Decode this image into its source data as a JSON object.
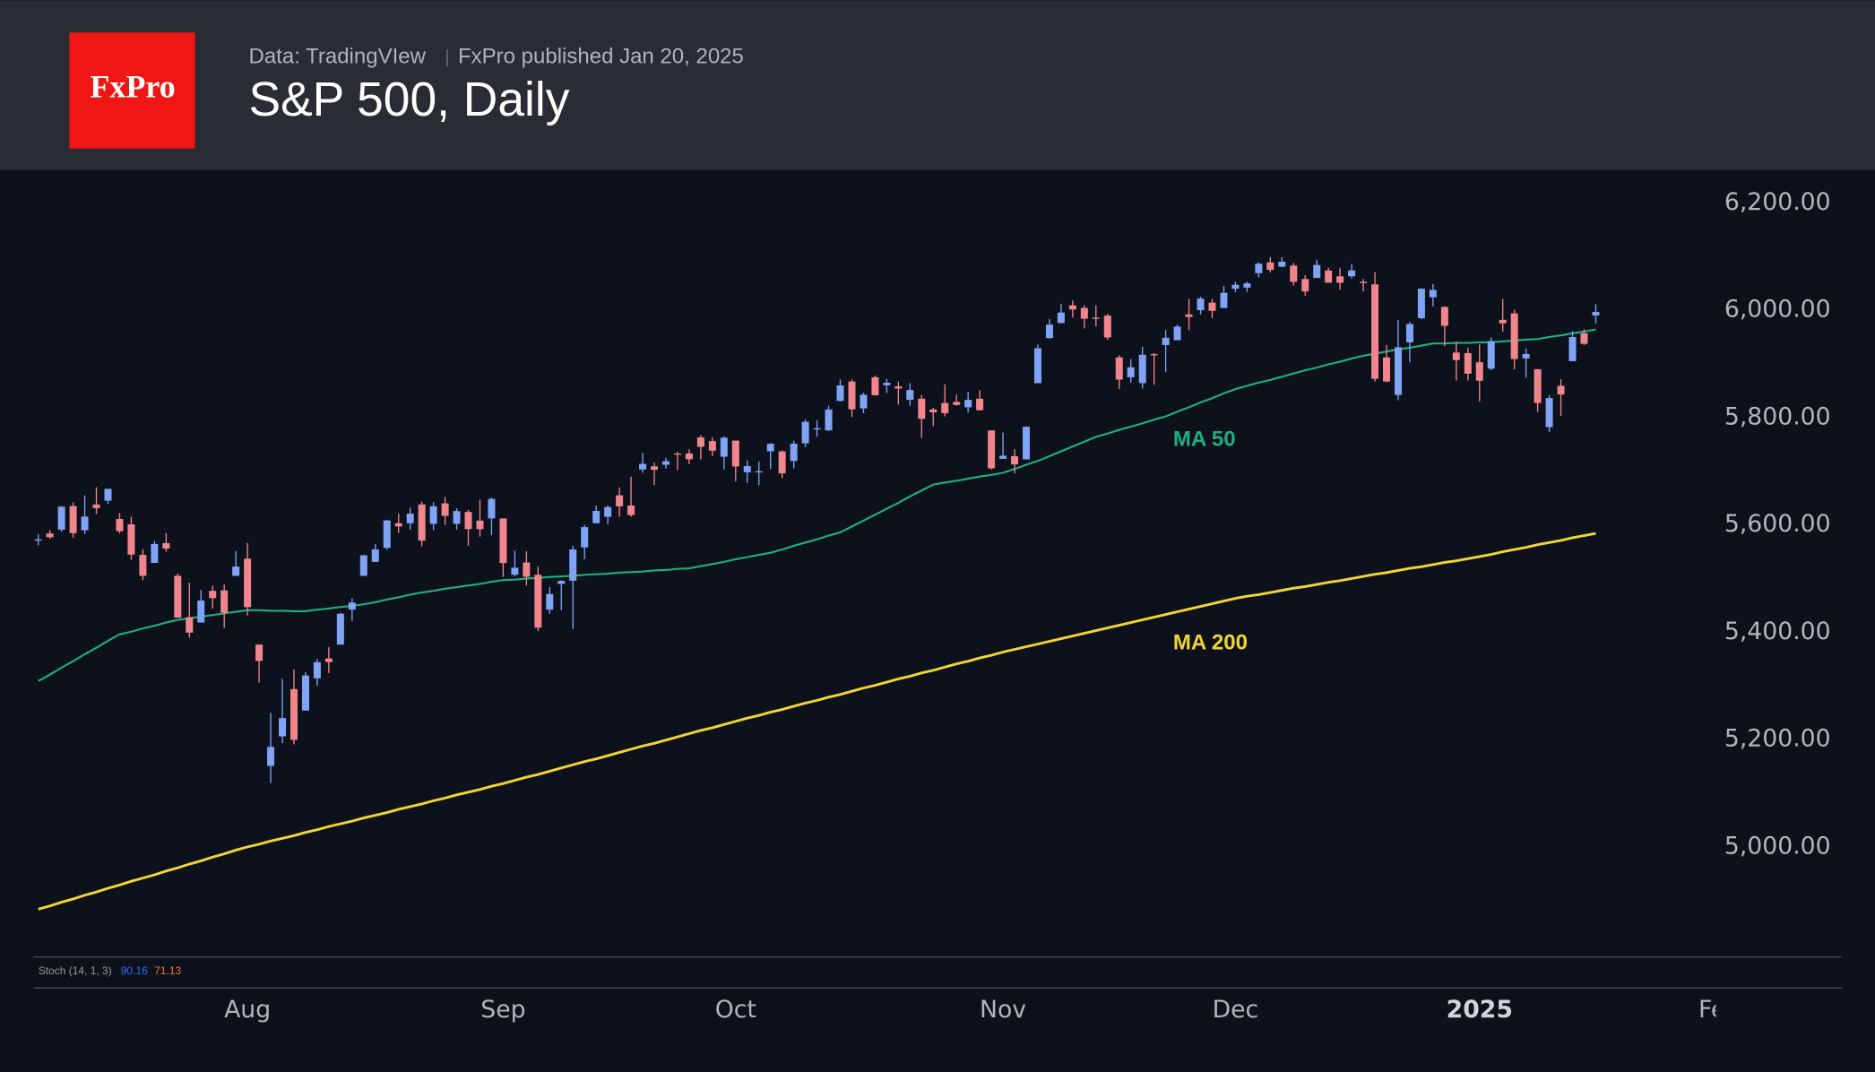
{
  "header": {
    "logo": "FxPro",
    "source": "Data: TradingVIew",
    "published": "FxPro published Jan 20, 2025"
  },
  "chart_data": {
    "type": "candlestick",
    "title": "S&P 500, Daily",
    "categories": [
      null,
      null,
      null,
      null,
      null,
      null,
      null,
      null,
      null,
      null,
      null,
      null,
      null,
      null,
      null,
      null,
      null,
      null,
      "Aug",
      null,
      null,
      null,
      null,
      null,
      null,
      null,
      null,
      null,
      null,
      null,
      null,
      null,
      null,
      null,
      null,
      null,
      null,
      null,
      null,
      null,
      "Sep",
      null,
      null,
      null,
      null,
      null,
      null,
      null,
      null,
      null,
      null,
      null,
      null,
      null,
      null,
      null,
      null,
      null,
      null,
      null,
      "Oct",
      null,
      null,
      null,
      null,
      null,
      null,
      null,
      null,
      null,
      null,
      null,
      null,
      null,
      null,
      null,
      null,
      null,
      null,
      null,
      null,
      null,
      null,
      "Nov",
      null,
      null,
      null,
      null,
      null,
      null,
      null,
      null,
      null,
      null,
      null,
      null,
      null,
      null,
      null,
      null,
      null,
      null,
      null,
      "Dec",
      null,
      null,
      null,
      null,
      null,
      null,
      null,
      null,
      null,
      null,
      null,
      null,
      null,
      null,
      null,
      null,
      null,
      null,
      null,
      null,
      "2025",
      null,
      null,
      null,
      null,
      null,
      null,
      null,
      null,
      null,
      null,
      null,
      null,
      null,
      null,
      null,
      null,
      null,
      null,
      null,
      "Fe"
    ],
    "open": [
      5572,
      5584,
      5591,
      5635,
      5590,
      5638,
      5645,
      5611,
      5601,
      5544,
      5529,
      5566,
      5505,
      5428,
      5418,
      5477,
      5478,
      5505,
      5537,
      5377,
      5151,
      5206,
      5294,
      5254,
      5314,
      5351,
      5377,
      5442,
      5505,
      5531,
      5557,
      5603,
      5603,
      5638,
      5602,
      5640,
      5602,
      5624,
      5608,
      5612,
      5612,
      5507,
      5530,
      5507,
      5442,
      5490,
      5496,
      5558,
      5603,
      5615,
      5655,
      5636,
      5703,
      5709,
      5712,
      5733,
      5733,
      5763,
      5756,
      5727,
      5757,
      5698,
      5698,
      5737,
      5737,
      5719,
      5752,
      5778,
      5776,
      5831,
      5867,
      5817,
      5875,
      5860,
      5858,
      5833,
      5835,
      5815,
      5827,
      5829,
      5819,
      5835,
      5776,
      5723,
      5728,
      5722,
      5864,
      5948,
      5976,
      6009,
      6004,
      5986,
      5990,
      5912,
      5875,
      5864,
      5918,
      5935,
      5944,
      5992,
      6000,
      6014,
      6004,
      6040,
      6042,
      6069,
      6089,
      6081,
      6083,
      6058,
      6060,
      6074,
      6063,
      6063,
      6053,
      6048,
      5912,
      5842,
      5940,
      5985,
      6024,
      6006,
      5921,
      5920,
      5903,
      5891,
      5982,
      5994,
      5910,
      5890,
      5782,
      5859,
      5905,
      5957,
      5990,
      null,
      null,
      null,
      null,
      null,
      null,
      null,
      null,
      null,
      null
    ],
    "high": [
      5583,
      5590,
      5635,
      5642,
      5655,
      5670,
      5667,
      5622,
      5615,
      5555,
      5570,
      5585,
      5509,
      5492,
      5479,
      5487,
      5489,
      5551,
      5566,
      5377,
      5250,
      5313,
      5331,
      5326,
      5350,
      5372,
      5436,
      5463,
      5544,
      5564,
      5609,
      5621,
      5632,
      5643,
      5642,
      5652,
      5631,
      5628,
      5647,
      5651,
      5612,
      5552,
      5551,
      5522,
      5484,
      5497,
      5561,
      5600,
      5636,
      5636,
      5670,
      5690,
      5734,
      5716,
      5725,
      5736,
      5741,
      5767,
      5763,
      5765,
      5757,
      5720,
      5718,
      5752,
      5739,
      5757,
      5796,
      5795,
      5822,
      5871,
      5871,
      5846,
      5878,
      5872,
      5867,
      5864,
      5842,
      5818,
      5862,
      5843,
      5848,
      5851,
      5776,
      5772,
      5741,
      5784,
      5936,
      5983,
      6012,
      6018,
      6009,
      6009,
      5993,
      5916,
      5909,
      5932,
      5920,
      5963,
      5973,
      6021,
      6025,
      6021,
      6045,
      6053,
      6053,
      6089,
      6099,
      6099,
      6088,
      6065,
      6094,
      6079,
      6079,
      6086,
      6058,
      6071,
      5935,
      5982,
      5978,
      6041,
      6049,
      6007,
      5941,
      5930,
      5936,
      5949,
      6021,
      6001,
      5928,
      5890,
      5842,
      5871,
      5961,
      5964,
      6011,
      null,
      null,
      null,
      null,
      null,
      null,
      null,
      null,
      null,
      null
    ],
    "low": [
      5562,
      5574,
      5587,
      5576,
      5583,
      5620,
      5639,
      5584,
      5535,
      5497,
      5529,
      5550,
      5427,
      5390,
      5418,
      5444,
      5408,
      5505,
      5431,
      5306,
      5119,
      5193,
      5191,
      5254,
      5300,
      5324,
      5377,
      5421,
      5505,
      5531,
      5554,
      5585,
      5591,
      5560,
      5590,
      5600,
      5591,
      5561,
      5578,
      5581,
      5503,
      5504,
      5487,
      5402,
      5434,
      5441,
      5406,
      5536,
      5603,
      5601,
      5615,
      5615,
      5697,
      5674,
      5705,
      5702,
      5713,
      5722,
      5728,
      5703,
      5681,
      5678,
      5674,
      5704,
      5687,
      5705,
      5745,
      5764,
      5775,
      5830,
      5801,
      5808,
      5841,
      5846,
      5824,
      5822,
      5762,
      5784,
      5802,
      5822,
      5809,
      5813,
      5703,
      5723,
      5696,
      5722,
      5864,
      5947,
      5976,
      5986,
      5966,
      5970,
      5945,
      5853,
      5865,
      5854,
      5861,
      5885,
      5944,
      5963,
      5992,
      5985,
      6004,
      6034,
      6034,
      6061,
      6070,
      6080,
      6046,
      6027,
      6060,
      6051,
      6038,
      6059,
      6035,
      5867,
      5866,
      5832,
      5903,
      5983,
      6007,
      5933,
      5869,
      5869,
      5830,
      5888,
      5960,
      5890,
      5874,
      5810,
      5773,
      5803,
      5905,
      5935,
      5975,
      null,
      null,
      null,
      null,
      null,
      null,
      null,
      null,
      null,
      null
    ],
    "close": [
      5572.85,
      5576.98,
      5633.91,
      5584.54,
      5615.35,
      5631.22,
      5667.2,
      5588.27,
      5544.59,
      5505,
      5564.41,
      5555.74,
      5427.13,
      5399.22,
      5459.1,
      5463.54,
      5436.44,
      5522.3,
      5446.68,
      5346.56,
      5186.33,
      5240.03,
      5199.5,
      5319.31,
      5344.16,
      5344.39,
      5434.43,
      5455.21,
      5543.22,
      5554.25,
      5608.25,
      5597.12,
      5620.85,
      5570.64,
      5634.61,
      5616.84,
      5625.8,
      5592.18,
      5591.96,
      5648.4,
      5528.93,
      5520.07,
      5503.41,
      5408.42,
      5471.05,
      5495.52,
      5554.13,
      5595.76,
      5626.02,
      5633.09,
      5634.58,
      5618.26,
      5713.64,
      5702.55,
      5718.57,
      5732.93,
      5722.26,
      5745.37,
      5738.17,
      5762.48,
      5708.75,
      5709.54,
      5699.94,
      5751.07,
      5695.94,
      5751.13,
      5792.04,
      5780.05,
      5815.03,
      5859.85,
      5815.26,
      5842.47,
      5841.47,
      5864.67,
      5853.98,
      5851.2,
      5797.42,
      5809.86,
      5808.12,
      5823.52,
      5832.92,
      5813.67,
      5705.45,
      5728.8,
      5712.69,
      5782.76,
      5929.04,
      5973.1,
      5995.54,
      6001.35,
      5983.99,
      5985.38,
      5949.17,
      5870.62,
      5893.62,
      5916.98,
      5917.11,
      5948.71,
      5969.34,
      5987.37,
      6021.63,
      5998.74,
      6032.38,
      6047.15,
      6049.88,
      6086.49,
      6075.11,
      6090.27,
      6052.85,
      6034.91,
      6084.19,
      6051.25,
      6051.09,
      6074.08,
      6050.61,
      5872.16,
      5867.08,
      5930.85,
      5974.07,
      6040.04,
      6037.59,
      5970.84,
      5906.94,
      5881.63,
      5868.55,
      5942.47,
      5975.38,
      5909.03,
      5918.25,
      5827.04,
      5836.22,
      5842.91,
      5949.91,
      5937.34,
      5996.66,
      null,
      null,
      null,
      null,
      null,
      null,
      null,
      null,
      null,
      null
    ],
    "up_color": "#7fa3f5",
    "down_color": "#f2858c",
    "series": [
      {
        "name": "MA 50",
        "color": "#1fae80",
        "values": [
          5309,
          5321,
          5334,
          5346,
          5359,
          5371,
          5384,
          5396,
          5401,
          5407,
          5412,
          5418,
          5423,
          5426,
          5429,
          5432,
          5435,
          5438,
          5441,
          5441,
          5440,
          5440,
          5439,
          5439,
          5442,
          5444,
          5447,
          5449,
          5452,
          5456,
          5461,
          5465,
          5470,
          5474,
          5477,
          5481,
          5484,
          5487,
          5490,
          5494,
          5497,
          5498,
          5500,
          5501,
          5503,
          5504,
          5505,
          5507,
          5508,
          5509,
          5511,
          5512,
          5513,
          5515,
          5516,
          5518,
          5519,
          5523,
          5527,
          5531,
          5536,
          5540,
          5544,
          5548,
          5554,
          5561,
          5567,
          5573,
          5580,
          5586,
          5597,
          5608,
          5619,
          5630,
          5641,
          5653,
          5664,
          5675,
          5679,
          5682,
          5686,
          5690,
          5693,
          5697,
          5704,
          5712,
          5719,
          5728,
          5737,
          5746,
          5755,
          5764,
          5770,
          5777,
          5783,
          5789,
          5796,
          5802,
          5811,
          5819,
          5828,
          5836,
          5845,
          5853,
          5859,
          5865,
          5870,
          5876,
          5882,
          5888,
          5893,
          5899,
          5904,
          5910,
          5915,
          5919,
          5923,
          5927,
          5930,
          5934,
          5938,
          5938,
          5939,
          5939,
          5940,
          5940,
          5942,
          5943,
          5945,
          5946,
          5950,
          5953,
          5957,
          5960,
          5964,
          null,
          null,
          null,
          null,
          null,
          null,
          null,
          null,
          null,
          null
        ]
      },
      {
        "name": "MA 200",
        "color": "#f2d534",
        "values": [
          4884,
          4890,
          4897,
          4903,
          4910,
          4916,
          4923,
          4929,
          4936,
          4942,
          4948,
          4955,
          4961,
          4968,
          4974,
          4981,
          4987,
          4994,
          5000,
          5005,
          5011,
          5016,
          5021,
          5027,
          5032,
          5038,
          5043,
          5048,
          5054,
          5059,
          5064,
          5070,
          5075,
          5080,
          5086,
          5091,
          5097,
          5102,
          5107,
          5113,
          5118,
          5124,
          5130,
          5135,
          5141,
          5147,
          5153,
          5159,
          5164,
          5170,
          5176,
          5182,
          5188,
          5193,
          5199,
          5205,
          5211,
          5217,
          5222,
          5228,
          5234,
          5240,
          5245,
          5251,
          5256,
          5262,
          5268,
          5273,
          5279,
          5284,
          5290,
          5296,
          5301,
          5307,
          5313,
          5318,
          5324,
          5329,
          5335,
          5341,
          5346,
          5352,
          5357,
          5363,
          5368,
          5373,
          5378,
          5383,
          5388,
          5393,
          5398,
          5403,
          5408,
          5413,
          5418,
          5423,
          5428,
          5433,
          5438,
          5443,
          5448,
          5453,
          5458,
          5463,
          5467,
          5470,
          5474,
          5478,
          5482,
          5485,
          5489,
          5493,
          5496,
          5500,
          5504,
          5508,
          5511,
          5515,
          5519,
          5522,
          5526,
          5530,
          5533,
          5537,
          5541,
          5545,
          5550,
          5554,
          5558,
          5563,
          5567,
          5571,
          5576,
          5580,
          5584,
          null,
          null,
          null,
          null,
          null,
          null,
          null,
          null,
          null,
          null
        ]
      }
    ],
    "ylim": [
      4795,
      6261
    ],
    "yticks": [
      {
        "value": 5000,
        "label": "5,000.00"
      },
      {
        "value": 5200,
        "label": "5,200.00"
      },
      {
        "value": 5400,
        "label": "5,400.00"
      },
      {
        "value": 5600,
        "label": "5,600.00"
      },
      {
        "value": 5800,
        "label": "5,800.00"
      },
      {
        "value": 6000,
        "label": "6,000.00"
      },
      {
        "value": 6200,
        "label": "6,200.00"
      }
    ],
    "grid": false,
    "indicator": {
      "label": "Stoch (14, 1, 3)",
      "values": [
        90.16,
        71.13
      ],
      "colors": [
        "#2f6bff",
        "#ff7a1a"
      ]
    }
  }
}
